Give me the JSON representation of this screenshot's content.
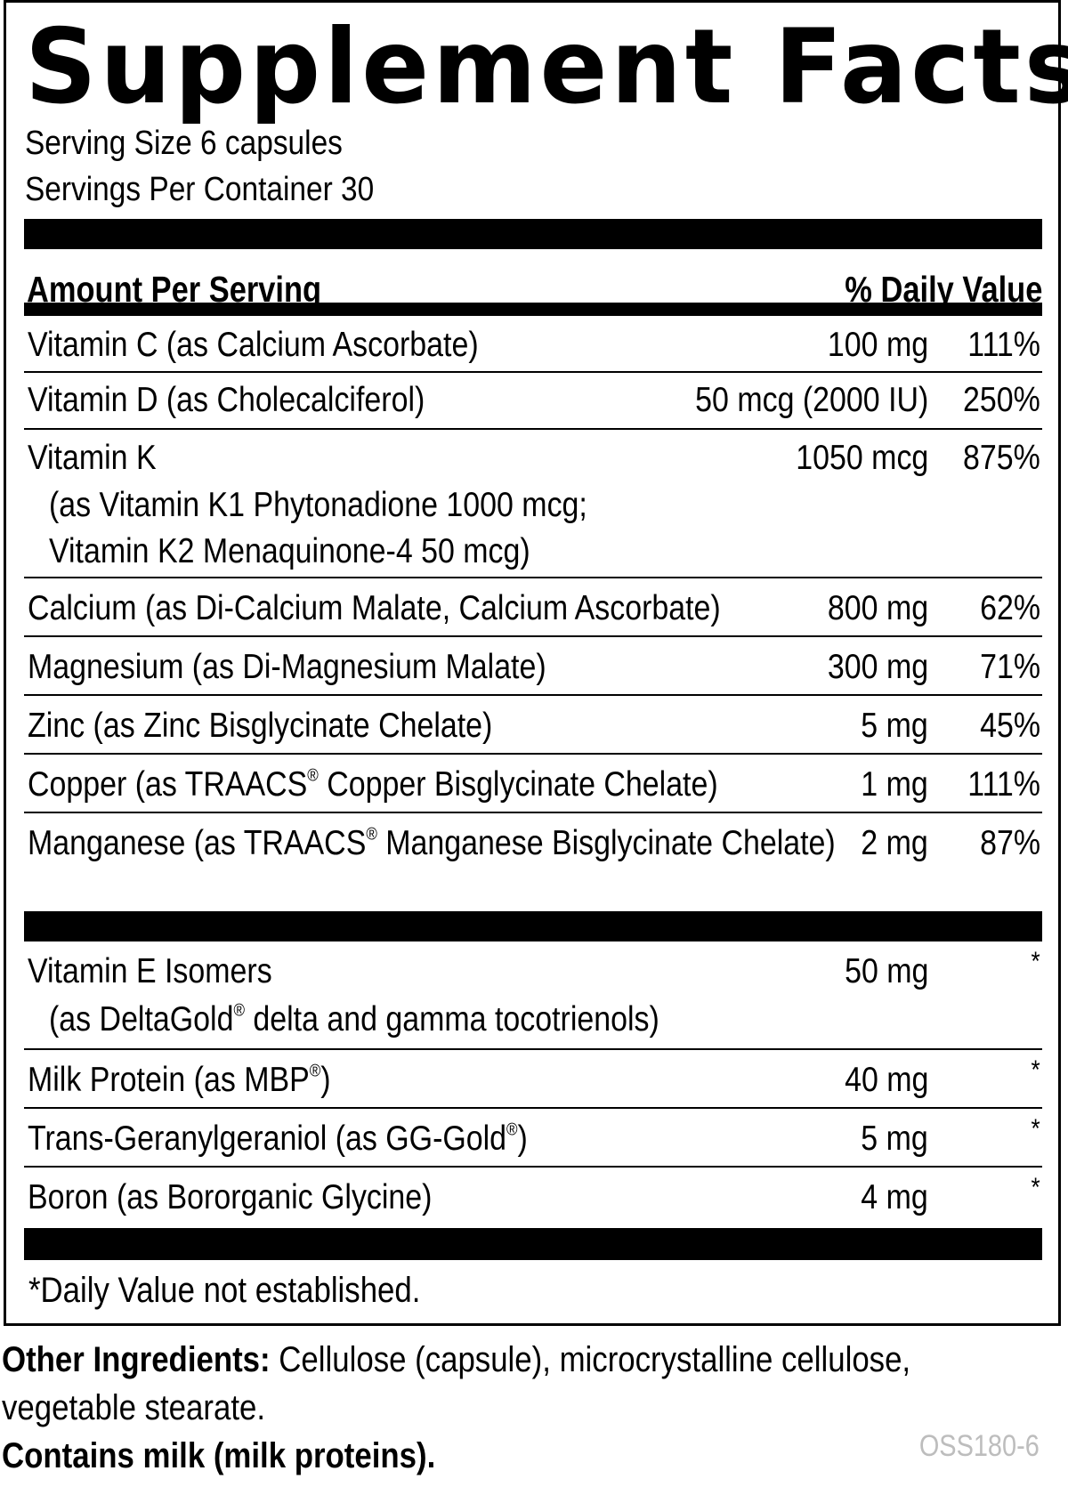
{
  "title": "Supplement Facts",
  "serving_size": "Serving Size 6 capsules",
  "servings_per_container": "Servings Per Container 30",
  "header": {
    "amount_label": "Amount Per Serving",
    "dv_label": "% Daily Value"
  },
  "nutrients": [
    {
      "name": "Vitamin C (as Calcium Ascorbate)",
      "amount": "100 mg",
      "dv": "111%"
    },
    {
      "name": "Vitamin D (as Cholecalciferol)",
      "amount": "50 mcg (2000 IU)",
      "dv": "250%"
    },
    {
      "name": "Vitamin K",
      "sub1": "(as Vitamin K1 Phytonadione 1000 mcg;",
      "sub2": "Vitamin K2 Menaquinone-4 50 mcg)",
      "amount": "1050 mcg",
      "dv": "875%"
    },
    {
      "name": "Calcium (as Di-Calcium Malate, Calcium Ascorbate)",
      "amount": "800 mg",
      "dv": "62%"
    },
    {
      "name": "Magnesium (as Di-Magnesium Malate)",
      "amount": "300 mg",
      "dv": "71%"
    },
    {
      "name": "Zinc (as Zinc Bisglycinate Chelate)",
      "amount": "5 mg",
      "dv": "45%"
    },
    {
      "name_a": "Copper (as TRAACS",
      "name_b": " Copper Bisglycinate Chelate)",
      "reg": "®",
      "amount": "1 mg",
      "dv": "111%"
    },
    {
      "name_a": "Manganese (as TRAACS",
      "name_b": " Manganese Bisglycinate Chelate)",
      "reg": "®",
      "amount": "2 mg",
      "dv": "87%"
    }
  ],
  "other_nutrients": [
    {
      "name": "Vitamin E Isomers",
      "sub_a": "(as DeltaGold",
      "sub_b": " delta and gamma tocotrienols)",
      "reg": "®",
      "amount": "50 mg",
      "dv": "*"
    },
    {
      "name_a": "Milk Protein (as MBP",
      "name_b": ")",
      "reg": "®",
      "amount": "40 mg",
      "dv": "*"
    },
    {
      "name_a": "Trans-Geranylgeraniol (as GG-Gold",
      "name_b": ")",
      "reg": "®",
      "amount": "5 mg",
      "dv": "*"
    },
    {
      "name": "Boron (as Bororganic Glycine)",
      "amount": "4 mg",
      "dv": "*"
    }
  ],
  "footnote": "*Daily Value not established.",
  "other_ingredients": {
    "label": "Other Ingredients:",
    "text1": " Cellulose (capsule), microcrystalline cellulose,",
    "text2": "vegetable stearate."
  },
  "allergen": "Contains milk (milk proteins).",
  "code": "OSS180-6",
  "colors": {
    "ink": "#000000",
    "code_gray": "#bdbdbd"
  }
}
